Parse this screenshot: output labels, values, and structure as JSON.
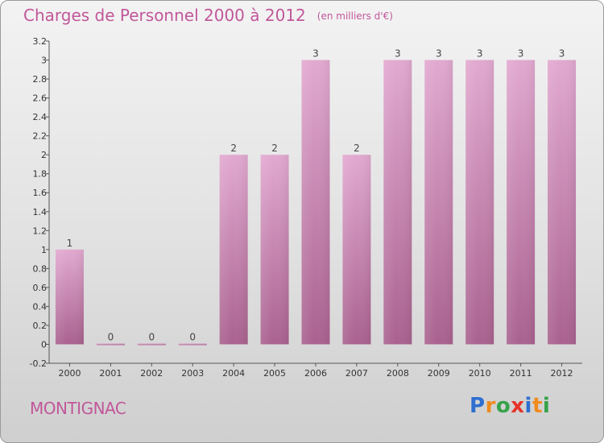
{
  "header": {
    "title": "Charges de Personnel 2000 à 2012",
    "unit": "(en milliers d'€)"
  },
  "place": "MONTIGNAC",
  "brand": {
    "letters": [
      "P",
      "r",
      "o",
      "x",
      "i",
      "t",
      "i"
    ],
    "colors": [
      "#2e6fd0",
      "#f08b1d",
      "#35a34a",
      "#e8332a",
      "#2e6fd0",
      "#f08b1d",
      "#35a34a"
    ]
  },
  "chart_data": {
    "type": "bar",
    "title": "Charges de Personnel 2000 à 2012",
    "subtitle": "(en milliers d'€)",
    "categories": [
      "2000",
      "2001",
      "2002",
      "2003",
      "2004",
      "2005",
      "2006",
      "2007",
      "2008",
      "2009",
      "2010",
      "2011",
      "2012"
    ],
    "values": [
      1,
      0,
      0,
      0,
      2,
      2,
      3,
      2,
      3,
      3,
      3,
      3,
      3
    ],
    "value_labels": [
      "1",
      "0",
      "0",
      "0",
      "2",
      "2",
      "3",
      "2",
      "3",
      "3",
      "3",
      "3",
      "3"
    ],
    "ylim": [
      -0.2,
      3.2
    ],
    "yticks": [
      -0.2,
      0,
      0.2,
      0.4,
      0.6,
      0.8,
      1,
      1.2,
      1.4,
      1.6,
      1.8,
      2,
      2.2,
      2.4,
      2.6,
      2.8,
      3,
      3.2
    ],
    "ytick_labels": [
      "-0.2",
      "0",
      "0.2",
      "0.4",
      "0.6",
      "0.8",
      "1",
      "1.2",
      "1.4",
      "1.6",
      "1.8",
      "2",
      "2.2",
      "2.4",
      "2.6",
      "2.8",
      "3",
      "3.2"
    ],
    "xlabel": "",
    "ylabel": "",
    "grid": false,
    "bar_color": "#d68fbd"
  }
}
